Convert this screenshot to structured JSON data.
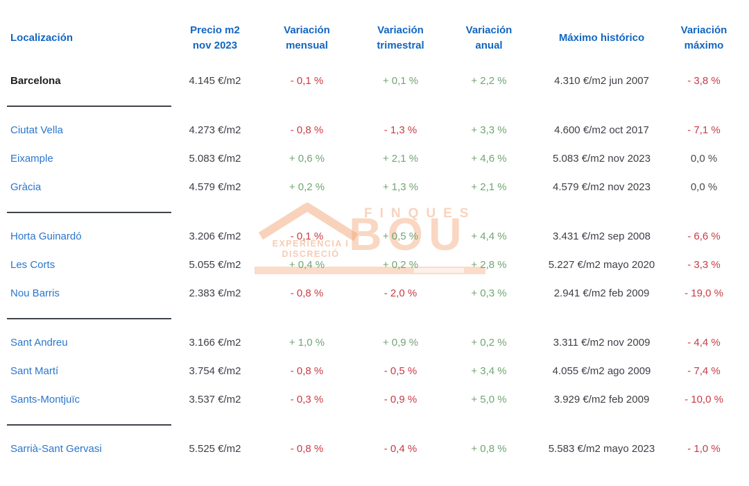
{
  "header": {
    "localizacion": "Localización",
    "precio": "Precio m2 nov 2023",
    "mensual": "Variación mensual",
    "trimestral": "Variación trimestral",
    "anual": "Variación anual",
    "maximo": "Máximo histórico",
    "var_maximo": "Variación máximo"
  },
  "watermark": {
    "brand_top": "FINQUES",
    "brand_main": "BOU",
    "tagline_line1": "EXPERIÈNCIA I",
    "tagline_line2": "DISCRECIÓ",
    "color": "#f3a678"
  },
  "colors": {
    "header_blue": "#1266c2",
    "link_blue": "#2a76cb",
    "negative_red": "#c93a43",
    "positive_green": "#6fa573",
    "neutral_gray": "#4a4a4a",
    "divider_dark": "#3f434a"
  },
  "table": {
    "groups": [
      {
        "rows": [
          {
            "name": "Barcelona",
            "bold": true,
            "price": "4.145 €/m2",
            "monthly": "- 0,1 %",
            "quarterly": "+ 0,1 %",
            "annual": "+ 2,2 %",
            "max": "4.310 €/m2 jun 2007",
            "max_var": "- 3,8 %"
          }
        ]
      },
      {
        "rows": [
          {
            "name": "Ciutat Vella",
            "price": "4.273 €/m2",
            "monthly": "- 0,8 %",
            "quarterly": "- 1,3 %",
            "annual": "+ 3,3 %",
            "max": "4.600 €/m2 oct 2017",
            "max_var": "- 7,1 %"
          },
          {
            "name": "Eixample",
            "price": "5.083 €/m2",
            "monthly": "+ 0,6 %",
            "quarterly": "+ 2,1 %",
            "annual": "+ 4,6 %",
            "max": "5.083 €/m2 nov 2023",
            "max_var": "0,0 %"
          },
          {
            "name": "Gràcia",
            "price": "4.579 €/m2",
            "monthly": "+ 0,2 %",
            "quarterly": "+ 1,3 %",
            "annual": "+ 2,1 %",
            "max": "4.579 €/m2 nov 2023",
            "max_var": "0,0 %"
          }
        ]
      },
      {
        "rows": [
          {
            "name": "Horta Guinardó",
            "price": "3.206 €/m2",
            "monthly": "- 0,1 %",
            "quarterly": "+ 0,5 %",
            "annual": "+ 4,4 %",
            "max": "3.431 €/m2 sep 2008",
            "max_var": "- 6,6 %"
          },
          {
            "name": "Les Corts",
            "price": "5.055 €/m2",
            "monthly": "+ 0,4 %",
            "quarterly": "+ 0,2 %",
            "annual": "+ 2,8 %",
            "max": "5.227 €/m2 mayo 2020",
            "max_var": "- 3,3 %"
          },
          {
            "name": "Nou Barris",
            "price": "2.383 €/m2",
            "monthly": "- 0,8 %",
            "quarterly": "- 2,0 %",
            "annual": "+ 0,3 %",
            "max": "2.941 €/m2 feb 2009",
            "max_var": "- 19,0 %"
          }
        ]
      },
      {
        "rows": [
          {
            "name": "Sant Andreu",
            "price": "3.166 €/m2",
            "monthly": "+ 1,0 %",
            "quarterly": "+ 0,9 %",
            "annual": "+ 0,2 %",
            "max": "3.311 €/m2 nov 2009",
            "max_var": "- 4,4 %"
          },
          {
            "name": "Sant Martí",
            "price": "3.754 €/m2",
            "monthly": "- 0,8 %",
            "quarterly": "- 0,5 %",
            "annual": "+ 3,4 %",
            "max": "4.055 €/m2 ago 2009",
            "max_var": "- 7,4 %"
          },
          {
            "name": "Sants-Montjuïc",
            "price": "3.537 €/m2",
            "monthly": "- 0,3 %",
            "quarterly": "- 0,9 %",
            "annual": "+ 5,0 %",
            "max": "3.929 €/m2 feb 2009",
            "max_var": "- 10,0 %"
          }
        ]
      },
      {
        "rows": [
          {
            "name": "Sarrià-Sant Gervasi",
            "price": "5.525 €/m2",
            "monthly": "- 0,8 %",
            "quarterly": "- 0,4 %",
            "annual": "+ 0,8 %",
            "max": "5.583 €/m2 mayo 2023",
            "max_var": "- 1,0 %"
          }
        ]
      }
    ]
  },
  "chart_data": {
    "type": "table",
    "title": "Precio m2 por localización - Barcelona nov 2023",
    "columns": [
      "Localización",
      "Precio m2 nov 2023",
      "Variación mensual",
      "Variación trimestral",
      "Variación anual",
      "Máximo histórico",
      "Variación máximo"
    ],
    "rows": [
      [
        "Barcelona",
        "4.145 €/m2",
        "- 0,1 %",
        "+ 0,1 %",
        "+ 2,2 %",
        "4.310 €/m2 jun 2007",
        "- 3,8 %"
      ],
      [
        "Ciutat Vella",
        "4.273 €/m2",
        "- 0,8 %",
        "- 1,3 %",
        "+ 3,3 %",
        "4.600 €/m2 oct 2017",
        "- 7,1 %"
      ],
      [
        "Eixample",
        "5.083 €/m2",
        "+ 0,6 %",
        "+ 2,1 %",
        "+ 4,6 %",
        "5.083 €/m2 nov 2023",
        "0,0 %"
      ],
      [
        "Gràcia",
        "4.579 €/m2",
        "+ 0,2 %",
        "+ 1,3 %",
        "+ 2,1 %",
        "4.579 €/m2 nov 2023",
        "0,0 %"
      ],
      [
        "Horta Guinardó",
        "3.206 €/m2",
        "- 0,1 %",
        "+ 0,5 %",
        "+ 4,4 %",
        "3.431 €/m2 sep 2008",
        "- 6,6 %"
      ],
      [
        "Les Corts",
        "5.055 €/m2",
        "+ 0,4 %",
        "+ 0,2 %",
        "+ 2,8 %",
        "5.227 €/m2 mayo 2020",
        "- 3,3 %"
      ],
      [
        "Nou Barris",
        "2.383 €/m2",
        "- 0,8 %",
        "- 2,0 %",
        "+ 0,3 %",
        "2.941 €/m2 feb 2009",
        "- 19,0 %"
      ],
      [
        "Sant Andreu",
        "3.166 €/m2",
        "+ 1,0 %",
        "+ 0,9 %",
        "+ 0,2 %",
        "3.311 €/m2 nov 2009",
        "- 4,4 %"
      ],
      [
        "Sant Martí",
        "3.754 €/m2",
        "- 0,8 %",
        "- 0,5 %",
        "+ 3,4 %",
        "4.055 €/m2 ago 2009",
        "- 7,4 %"
      ],
      [
        "Sants-Montjuïc",
        "3.537 €/m2",
        "- 0,3 %",
        "- 0,9 %",
        "+ 5,0 %",
        "3.929 €/m2 feb 2009",
        "- 10,0 %"
      ],
      [
        "Sarrià-Sant Gervasi",
        "5.525 €/m2",
        "- 0,8 %",
        "- 0,4 %",
        "+ 0,8 %",
        "5.583 €/m2 mayo 2023",
        "- 1,0 %"
      ]
    ]
  }
}
